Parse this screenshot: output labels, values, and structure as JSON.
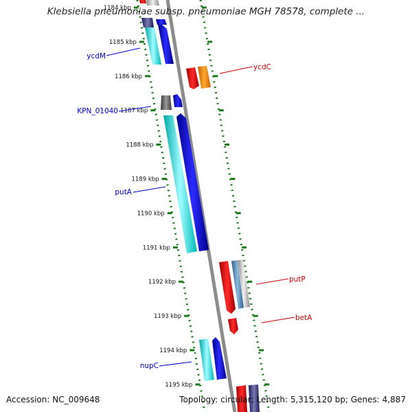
{
  "title": "Klebsiella pneumoniae subsp. pneumoniae MGH 78578, complete ...",
  "footer": {
    "accession_label": "Accession:",
    "accession": "NC_009648",
    "topology_label": "Topology:",
    "topology": "circular",
    "length_label": "Length:",
    "length": "5,315,120 bp",
    "genes_label": "Genes:",
    "genes": "4,887"
  },
  "ticks": [
    {
      "label": "1184 kbp",
      "kbp": 1184
    },
    {
      "label": "1185 kbp",
      "kbp": 1185
    },
    {
      "label": "1186 kbp",
      "kbp": 1186
    },
    {
      "label": "1187 kbp",
      "kbp": 1187
    },
    {
      "label": "1188 kbp",
      "kbp": 1188
    },
    {
      "label": "1189 kbp",
      "kbp": 1189
    },
    {
      "label": "1190 kbp",
      "kbp": 1190
    },
    {
      "label": "1191 kbp",
      "kbp": 1191
    },
    {
      "label": "1192 kbp",
      "kbp": 1192
    },
    {
      "label": "1193 kbp",
      "kbp": 1193
    },
    {
      "label": "1194 kbp",
      "kbp": 1194
    },
    {
      "label": "1195 kbp",
      "kbp": 1195
    }
  ],
  "gene_labels": [
    {
      "name": "ycdM",
      "side": "left",
      "color": "#0000cc"
    },
    {
      "name": "KPN_01040",
      "side": "left",
      "color": "#0000cc"
    },
    {
      "name": "putA",
      "side": "left",
      "color": "#0000cc"
    },
    {
      "name": "nupC",
      "side": "left",
      "color": "#0000cc"
    },
    {
      "name": "ycdC",
      "side": "right",
      "color": "#cc0000"
    },
    {
      "name": "putP",
      "side": "right",
      "color": "#cc0000"
    },
    {
      "name": "betA",
      "side": "right",
      "color": "#cc0000"
    }
  ],
  "colors": {
    "backbone": "#8c8c8c",
    "scale_dots": "#1a7a1a",
    "cds_reverse": "#0000ee",
    "cds_reverse_light": "#00e5e5",
    "cds_forward": "#ee0000",
    "orange": "#ff8c00",
    "gray_gene": "#666666",
    "steel": "#4682b4"
  }
}
